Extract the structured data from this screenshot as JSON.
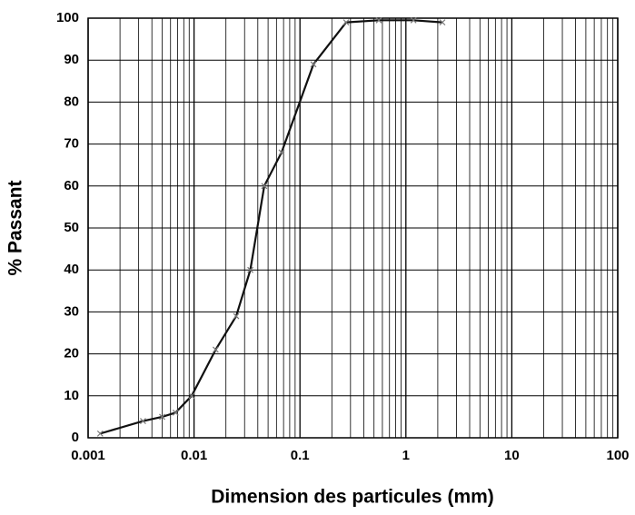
{
  "chart_data": {
    "type": "line",
    "xlabel": "Dimension des particules (mm)",
    "ylabel": "% Passant",
    "xscale": "log",
    "xlim": [
      0.001,
      100
    ],
    "xticks": [
      0.001,
      0.01,
      0.1,
      1,
      10,
      100
    ],
    "ylim": [
      0,
      100
    ],
    "yticks": [
      0,
      10,
      20,
      30,
      40,
      50,
      60,
      70,
      80,
      90,
      100
    ],
    "grid": true,
    "series": [
      {
        "color": "#111111",
        "x": [
          0.0013,
          0.0033,
          0.005,
          0.0067,
          0.0095,
          0.016,
          0.025,
          0.034,
          0.046,
          0.067,
          0.134,
          0.273,
          0.555,
          1.18,
          2.21
        ],
        "values": [
          1,
          4,
          5,
          6,
          10,
          21,
          29,
          40,
          60,
          68,
          89,
          99,
          99.5,
          99.5,
          99
        ]
      }
    ]
  }
}
